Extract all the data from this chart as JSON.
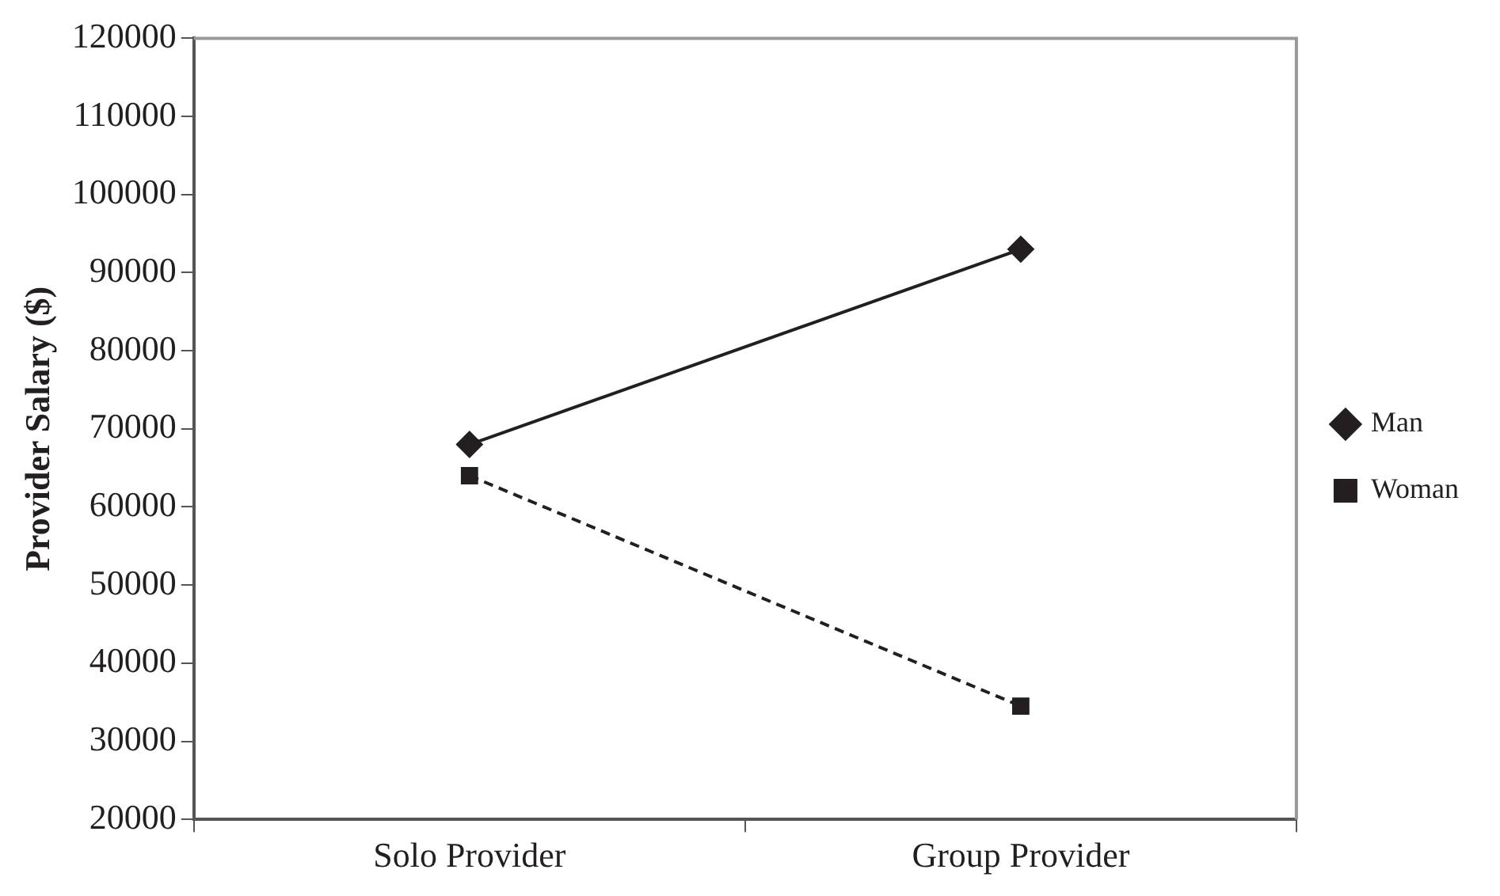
{
  "chart_data": {
    "type": "line",
    "ylabel": "Provider Salary ($)",
    "categories": [
      "Solo Provider",
      "Group Provider"
    ],
    "series": [
      {
        "name": "Man",
        "color": "#231f20",
        "values": [
          68000,
          93000
        ],
        "marker": "diamond",
        "line_style": "solid"
      },
      {
        "name": "Woman",
        "color": "#231f20",
        "values": [
          64000,
          34500
        ],
        "marker": "square",
        "line_style": "dashed"
      }
    ],
    "ylim": [
      20000,
      120000
    ],
    "yticks": [
      20000,
      30000,
      40000,
      50000,
      60000,
      70000,
      80000,
      90000,
      100000,
      110000,
      120000
    ],
    "grid": false,
    "legend": "right"
  }
}
